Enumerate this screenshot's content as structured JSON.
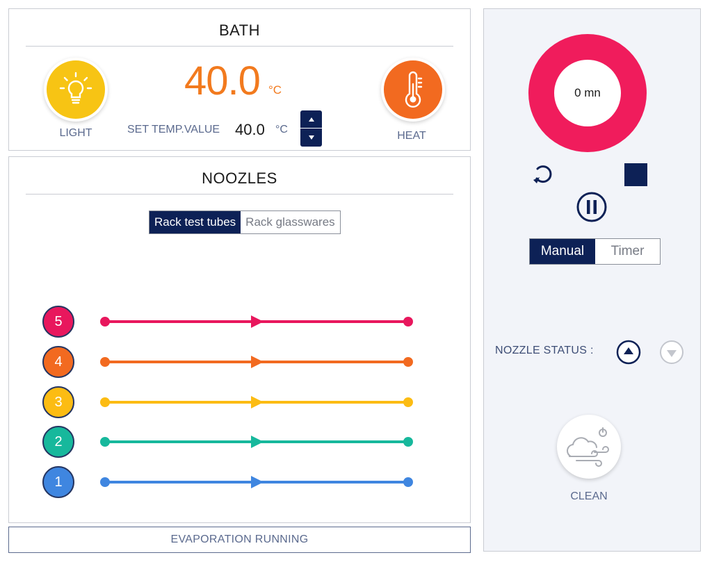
{
  "bath": {
    "title": "BATH",
    "light_label": "LIGHT",
    "heat_label": "HEAT",
    "current_temp": "40.0",
    "temp_unit": "°C",
    "set_temp_label": "SET TEMP.VALUE",
    "set_temp_value": "40.0",
    "set_temp_unit": "°C"
  },
  "noozles": {
    "title": "NOOZLES",
    "rack_tabs": [
      "Rack test tubes",
      "Rack glasswares"
    ],
    "rack_selected": "Rack test tubes",
    "nozzles": [
      {
        "number": "5",
        "color": "#e8175d"
      },
      {
        "number": "4",
        "color": "#f26a20"
      },
      {
        "number": "3",
        "color": "#fcbc13"
      },
      {
        "number": "2",
        "color": "#17b89c"
      },
      {
        "number": "1",
        "color": "#3f86e0"
      }
    ]
  },
  "status_bar": "EVAPORATION RUNNING",
  "timer": {
    "display": "0 mn",
    "ring_color": "#f01c5c",
    "modes": [
      "Manual",
      "Timer"
    ],
    "mode_selected": "Manual"
  },
  "nozzle_status": {
    "label": "NOZZLE STATUS :"
  },
  "clean_label": "CLEAN",
  "icons": {
    "light": "lightbulb-icon",
    "heat": "thermometer-icon",
    "reset": "reset-icon",
    "stop": "stop-icon",
    "pause": "pause-icon",
    "nozzle_up": "triangle-up-icon",
    "nozzle_down": "triangle-down-icon",
    "clean": "cloud-wind-icon"
  },
  "colors": {
    "navy": "#0d2156",
    "light_yellow": "#f7c414",
    "heat_orange": "#f26a20",
    "temp_orange": "#f27a1e"
  }
}
